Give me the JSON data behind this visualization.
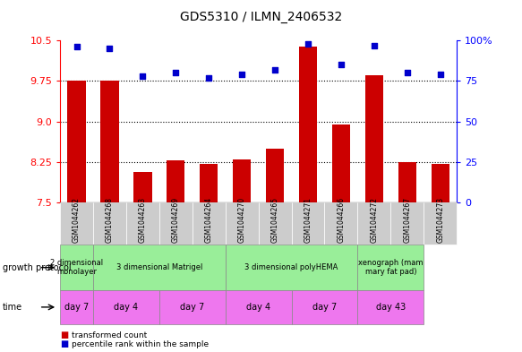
{
  "title": "GDS5310 / ILMN_2406532",
  "samples": [
    "GSM1044262",
    "GSM1044268",
    "GSM1044263",
    "GSM1044269",
    "GSM1044264",
    "GSM1044270",
    "GSM1044265",
    "GSM1044271",
    "GSM1044266",
    "GSM1044272",
    "GSM1044267",
    "GSM1044273"
  ],
  "bar_values": [
    9.75,
    9.75,
    8.07,
    8.28,
    8.22,
    8.3,
    8.5,
    10.38,
    8.95,
    9.85,
    8.25,
    8.22
  ],
  "dot_values": [
    96,
    95,
    78,
    80,
    77,
    79,
    82,
    98,
    85,
    97,
    80,
    79
  ],
  "bar_color": "#cc0000",
  "dot_color": "#0000cc",
  "ylim_left": [
    7.5,
    10.5
  ],
  "ylim_right": [
    0,
    100
  ],
  "yticks_left": [
    7.5,
    8.25,
    9.0,
    9.75,
    10.5
  ],
  "yticks_right": [
    0,
    25,
    50,
    75,
    100
  ],
  "ytick_labels_right": [
    "0",
    "25",
    "50",
    "75",
    "100%"
  ],
  "grid_lines": [
    8.25,
    9.0,
    9.75
  ],
  "growth_protocol_spans": [
    {
      "label": "2 dimensional\nmonolayer",
      "cols": [
        0,
        1
      ],
      "color": "#99ee99"
    },
    {
      "label": "3 dimensional Matrigel",
      "cols": [
        1,
        5
      ],
      "color": "#99ee99"
    },
    {
      "label": "3 dimensional polyHEMA",
      "cols": [
        5,
        9
      ],
      "color": "#99ee99"
    },
    {
      "label": "xenograph (mam\nmary fat pad)",
      "cols": [
        9,
        11
      ],
      "color": "#99ee99"
    }
  ],
  "time_spans": [
    {
      "label": "day 7",
      "cols": [
        0,
        1
      ]
    },
    {
      "label": "day 4",
      "cols": [
        1,
        3
      ]
    },
    {
      "label": "day 7",
      "cols": [
        3,
        5
      ]
    },
    {
      "label": "day 4",
      "cols": [
        5,
        7
      ]
    },
    {
      "label": "day 7",
      "cols": [
        7,
        9
      ]
    },
    {
      "label": "day 43",
      "cols": [
        9,
        11
      ]
    }
  ],
  "time_color": "#ee77ee",
  "sample_bg_color": "#cccccc",
  "legend_items": [
    {
      "label": "transformed count",
      "color": "#cc0000"
    },
    {
      "label": "percentile rank within the sample",
      "color": "#0000cc"
    }
  ]
}
